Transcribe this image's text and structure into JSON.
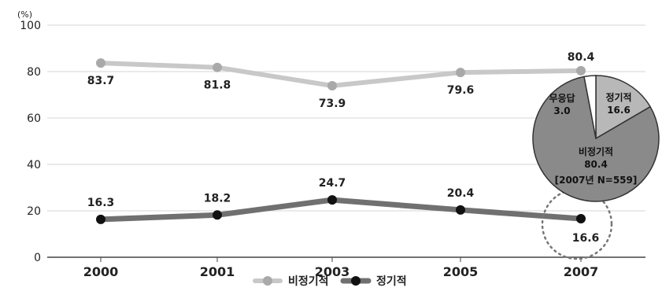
{
  "chart_data": [
    {
      "type": "line",
      "unit": "(%)",
      "categories": [
        "2000",
        "2001",
        "2003",
        "2005",
        "2007"
      ],
      "ylim": [
        0,
        100
      ],
      "yticks": [
        0,
        20,
        40,
        60,
        80,
        100
      ],
      "grid": true,
      "legend_position": "bottom-center",
      "series": [
        {
          "name": "비정기적",
          "values": [
            83.7,
            81.8,
            73.9,
            79.6,
            80.4
          ],
          "color": "#c8c8c8",
          "marker_color": "#a9a9a9"
        },
        {
          "name": "정기적",
          "values": [
            16.3,
            18.2,
            24.7,
            20.4,
            16.6
          ],
          "color": "#707070",
          "marker_color": "#111111"
        }
      ],
      "data_labels": [
        [
          "83.7",
          "81.8",
          "73.9",
          "79.6",
          "80.4"
        ],
        [
          "16.3",
          "18.2",
          "24.7",
          "20.4",
          "16.6"
        ]
      ]
    },
    {
      "type": "pie",
      "slices": [
        {
          "label": "정기적",
          "value": 16.6,
          "value_label": "16.6",
          "color": "#b8b8b8"
        },
        {
          "label": "비정기적",
          "value": 80.4,
          "value_label": "80.4",
          "color": "#8a8a8a"
        },
        {
          "label": "무응답",
          "value": 3.0,
          "value_label": "3.0",
          "color": "#ffffff"
        }
      ],
      "note": "[2007년 N=559]"
    }
  ]
}
